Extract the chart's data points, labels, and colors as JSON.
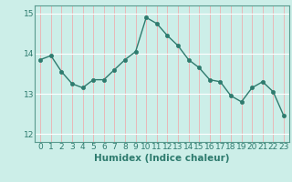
{
  "x": [
    0,
    1,
    2,
    3,
    4,
    5,
    6,
    7,
    8,
    9,
    10,
    11,
    12,
    13,
    14,
    15,
    16,
    17,
    18,
    19,
    20,
    21,
    22,
    23
  ],
  "y": [
    13.85,
    13.95,
    13.55,
    13.25,
    13.15,
    13.35,
    13.35,
    13.6,
    13.85,
    14.05,
    14.9,
    14.75,
    14.45,
    14.2,
    13.85,
    13.65,
    13.35,
    13.3,
    12.95,
    12.8,
    13.15,
    13.3,
    13.05,
    12.45
  ],
  "line_color": "#2e7b6e",
  "bg_color": "#cceee8",
  "vgrid_color": "#e8b8b8",
  "hgrid_color": "#ffffff",
  "xlabel": "Humidex (Indice chaleur)",
  "ylim": [
    11.8,
    15.2
  ],
  "xlim": [
    -0.5,
    23.5
  ],
  "yticks": [
    12,
    13,
    14,
    15
  ],
  "xticks": [
    0,
    1,
    2,
    3,
    4,
    5,
    6,
    7,
    8,
    9,
    10,
    11,
    12,
    13,
    14,
    15,
    16,
    17,
    18,
    19,
    20,
    21,
    22,
    23
  ],
  "xlabel_fontsize": 7.5,
  "tick_fontsize": 6.5,
  "line_width": 1.0,
  "marker_size": 3.0,
  "spine_color": "#5a9a8e"
}
